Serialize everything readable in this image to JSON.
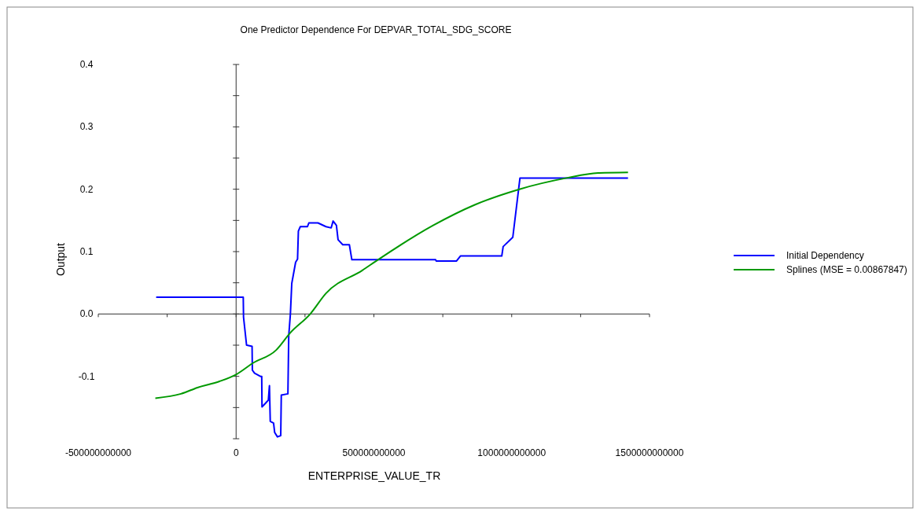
{
  "chart_data": {
    "type": "line",
    "title": "One Predictor Dependence For DEPVAR_TOTAL_SDG_SCORE",
    "xlabel": "ENTERPRISE_VALUE_TR",
    "ylabel": "Output",
    "xlim": [
      -500000000000,
      1500000000000
    ],
    "xticks": [
      -500000000000,
      {
        "value": -250000000000,
        "label": null
      },
      0,
      {
        "value": 250000000000,
        "label": null
      },
      500000000000,
      {
        "value": 750000000000,
        "label": null
      },
      1000000000000,
      {
        "value": 1250000000000,
        "label": null
      },
      1500000000000
    ],
    "ylim": [
      -0.2,
      0.4
    ],
    "yticks": [
      {
        "value": -0.2,
        "label": null
      },
      {
        "value": -0.15,
        "label": null
      },
      -0.1,
      {
        "value": -0.05,
        "label": null
      },
      {
        "value": 0,
        "label": "0.0"
      },
      {
        "value": 0.05,
        "label": null
      },
      0.1,
      {
        "value": 0.15,
        "label": null
      },
      0.2,
      {
        "value": 0.25,
        "label": null
      },
      0.3,
      {
        "value": 0.35,
        "label": null
      },
      0.4
    ],
    "legend": "right",
    "series": [
      {
        "name": "Initial Dependency",
        "color": "#0000ff",
        "x": [
          -290000000000,
          26000000000,
          27000000000,
          38000000000,
          39000000000,
          58000000000,
          59000000000,
          67000000000,
          88000000000,
          93000000000,
          94000000000,
          107000000000,
          117000000000,
          121000000000,
          124000000000,
          136000000000,
          140000000000,
          150000000000,
          162000000000,
          164000000000,
          188000000000,
          191000000000,
          197000000000,
          202000000000,
          216000000000,
          223000000000,
          226000000000,
          233000000000,
          259000000000,
          264000000000,
          297000000000,
          326000000000,
          345000000000,
          352000000000,
          364000000000,
          370000000000,
          387000000000,
          411000000000,
          420000000000,
          430000000000,
          724000000000,
          726000000000,
          800000000000,
          814000000000,
          964000000000,
          969000000000,
          1004000000000,
          1030000000000,
          1422000000000
        ],
        "values": [
          0.027,
          0.027,
          -0.005,
          -0.05,
          -0.05,
          -0.052,
          -0.09,
          -0.095,
          -0.1,
          -0.1,
          -0.149,
          -0.143,
          -0.138,
          -0.115,
          -0.172,
          -0.175,
          -0.19,
          -0.197,
          -0.195,
          -0.13,
          -0.128,
          -0.035,
          0,
          0.049,
          0.083,
          0.088,
          0.133,
          0.14,
          0.14,
          0.146,
          0.146,
          0.14,
          0.138,
          0.149,
          0.142,
          0.119,
          0.111,
          0.111,
          0.087,
          0.087,
          0.087,
          0.085,
          0.085,
          0.093,
          0.093,
          0.108,
          0.123,
          0.218,
          0.218
        ]
      },
      {
        "name": "Splines (MSE = 0.00867847)",
        "color": "#009900",
        "x": [
          -293000000000,
          -200000000000,
          -140000000000,
          -60000000000,
          0,
          60000000000,
          145000000000,
          197000000000,
          269000000000,
          326000000000,
          458000000000,
          515000000000,
          715000000000,
          866000000000,
          1028000000000,
          1199000000000,
          1313000000000,
          1422000000000
        ],
        "values": [
          -0.135,
          -0.128,
          -0.118,
          -0.108,
          -0.097,
          -0.079,
          -0.058,
          -0.03,
          0,
          0.033,
          0.07,
          0.087,
          0.142,
          0.175,
          0.2,
          0.218,
          0.226,
          0.227
        ]
      }
    ]
  }
}
